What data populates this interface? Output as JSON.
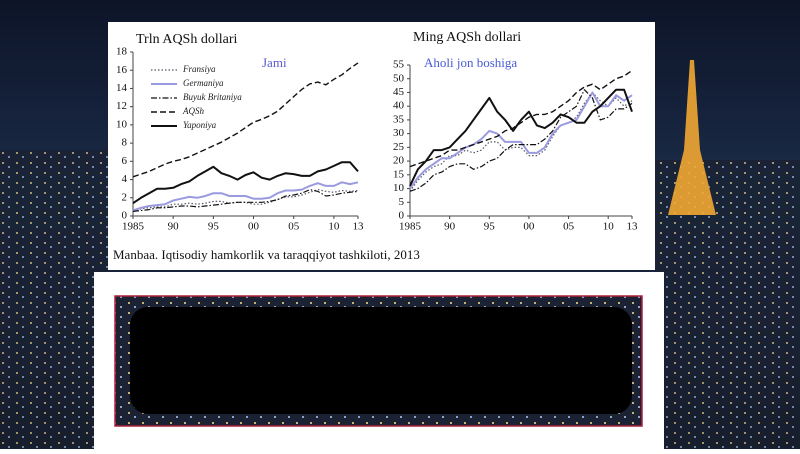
{
  "chart_data": [
    {
      "type": "line",
      "title": "Trln AQSh dollari",
      "annotation": "Jami",
      "annotation_color": "#5a5ad0",
      "legend": "upper left",
      "x": [
        1985,
        1986,
        1987,
        1988,
        1989,
        1990,
        1991,
        1992,
        1993,
        1994,
        1995,
        1996,
        1997,
        1998,
        1999,
        2000,
        2001,
        2002,
        2003,
        2004,
        2005,
        2006,
        2007,
        2008,
        2009,
        2010,
        2011,
        2012,
        2013
      ],
      "xlim": [
        1985,
        2013
      ],
      "xticks": [
        1985,
        {
          "value": 1990,
          "label": "90"
        },
        {
          "value": 1995,
          "label": "95"
        },
        {
          "value": 2000,
          "label": "00"
        },
        {
          "value": 2005,
          "label": "05"
        },
        {
          "value": 2010,
          "label": "10"
        },
        {
          "value": 2013,
          "label": "13"
        }
      ],
      "ylim": [
        0,
        18
      ],
      "yticks": [
        0,
        2,
        4,
        6,
        8,
        10,
        12,
        14,
        16,
        18
      ],
      "series": [
        {
          "name": "Fransiya",
          "color": "#555566",
          "style": "dotted",
          "values": [
            0.5,
            0.8,
            0.9,
            1.0,
            1.0,
            1.3,
            1.3,
            1.4,
            1.3,
            1.4,
            1.6,
            1.6,
            1.4,
            1.5,
            1.5,
            1.3,
            1.3,
            1.5,
            1.8,
            2.1,
            2.1,
            2.3,
            2.6,
            2.9,
            2.7,
            2.6,
            2.8,
            2.7,
            2.8
          ]
        },
        {
          "name": "Germaniya",
          "color": "#9a9ae0",
          "style": "solid",
          "values": [
            0.6,
            0.9,
            1.1,
            1.2,
            1.3,
            1.7,
            1.9,
            2.1,
            2.0,
            2.2,
            2.5,
            2.5,
            2.2,
            2.2,
            2.2,
            1.9,
            1.9,
            2.0,
            2.5,
            2.8,
            2.8,
            2.9,
            3.3,
            3.6,
            3.3,
            3.3,
            3.7,
            3.5,
            3.7
          ]
        },
        {
          "name": "Buyuk Britaniya",
          "color": "#111111",
          "style": "dashdot",
          "values": [
            0.5,
            0.6,
            0.7,
            0.9,
            0.9,
            1.0,
            1.1,
            1.1,
            1.0,
            1.1,
            1.2,
            1.3,
            1.4,
            1.5,
            1.5,
            1.5,
            1.5,
            1.6,
            1.8,
            2.2,
            2.3,
            2.5,
            2.9,
            2.7,
            2.2,
            2.3,
            2.5,
            2.6,
            2.7
          ]
        },
        {
          "name": "AQSh",
          "color": "#111111",
          "style": "dashed",
          "values": [
            4.3,
            4.6,
            4.9,
            5.3,
            5.7,
            6.0,
            6.2,
            6.5,
            6.9,
            7.3,
            7.7,
            8.1,
            8.6,
            9.1,
            9.7,
            10.3,
            10.6,
            11.0,
            11.5,
            12.3,
            13.1,
            13.9,
            14.5,
            14.7,
            14.4,
            15.0,
            15.5,
            16.2,
            16.8
          ]
        },
        {
          "name": "Yaponiya",
          "color": "#111111",
          "style": "solid",
          "values": [
            1.4,
            2.0,
            2.5,
            3.0,
            3.0,
            3.1,
            3.5,
            3.8,
            4.4,
            4.9,
            5.4,
            4.7,
            4.4,
            4.0,
            4.5,
            4.8,
            4.2,
            4.0,
            4.4,
            4.7,
            4.6,
            4.4,
            4.4,
            4.9,
            5.1,
            5.5,
            5.9,
            5.9,
            4.9
          ]
        }
      ]
    },
    {
      "type": "line",
      "title": "Ming AQSh dollari",
      "annotation": "Aholi jon boshiga",
      "annotation_color": "#4a5ad8",
      "x": [
        1985,
        1986,
        1987,
        1988,
        1989,
        1990,
        1991,
        1992,
        1993,
        1994,
        1995,
        1996,
        1997,
        1998,
        1999,
        2000,
        2001,
        2002,
        2003,
        2004,
        2005,
        2006,
        2007,
        2008,
        2009,
        2010,
        2011,
        2012,
        2013
      ],
      "xlim": [
        1985,
        2013
      ],
      "xticks": [
        1985,
        {
          "value": 1990,
          "label": "90"
        },
        {
          "value": 1995,
          "label": "95"
        },
        {
          "value": 2000,
          "label": "00"
        },
        {
          "value": 2005,
          "label": "05"
        },
        {
          "value": 2010,
          "label": "10"
        },
        {
          "value": 2013,
          "label": "13"
        }
      ],
      "ylim": [
        0,
        55
      ],
      "yticks": [
        0,
        5,
        10,
        15,
        20,
        25,
        30,
        35,
        40,
        45,
        50,
        55
      ],
      "series": [
        {
          "color": "#555566",
          "style": "dotted",
          "values": [
            9,
            13,
            16,
            18,
            19,
            22,
            22,
            24,
            23,
            24,
            27,
            27,
            24,
            25,
            25,
            22,
            22,
            24,
            29,
            33,
            34,
            36,
            41,
            45,
            42,
            40,
            43,
            40,
            42
          ]
        },
        {
          "color": "#9a9ae0",
          "style": "solid",
          "values": [
            10,
            14,
            17,
            19,
            21,
            21,
            23,
            25,
            26,
            28,
            31,
            30,
            27,
            27,
            27,
            23,
            23,
            25,
            30,
            33,
            34,
            35,
            40,
            45,
            40,
            40,
            44,
            42,
            44
          ]
        },
        {
          "color": "#111111",
          "style": "dashdot",
          "values": [
            9,
            10,
            12,
            15,
            16,
            18,
            19,
            19,
            17,
            18,
            20,
            21,
            24,
            26,
            26,
            26,
            26,
            28,
            31,
            36,
            38,
            40,
            46,
            43,
            35,
            36,
            39,
            39,
            41
          ]
        },
        {
          "color": "#111111",
          "style": "dashed",
          "values": [
            18,
            19,
            20,
            21,
            22,
            24,
            24,
            25,
            26,
            27,
            28,
            29,
            31,
            32,
            34,
            36,
            37,
            37,
            38,
            40,
            42,
            45,
            47,
            48,
            46,
            48,
            50,
            51,
            53
          ]
        },
        {
          "color": "#111111",
          "style": "solid",
          "values": [
            11,
            17,
            20,
            24,
            24,
            25,
            28,
            31,
            35,
            39,
            43,
            38,
            35,
            31,
            35,
            38,
            33,
            32,
            34,
            37,
            36,
            34,
            34,
            38,
            40,
            43,
            46,
            46,
            38
          ]
        }
      ]
    }
  ],
  "source": "Manbaa. Iqtisodiy hamkorlik va taraqqiyot tashkiloti, 2013"
}
